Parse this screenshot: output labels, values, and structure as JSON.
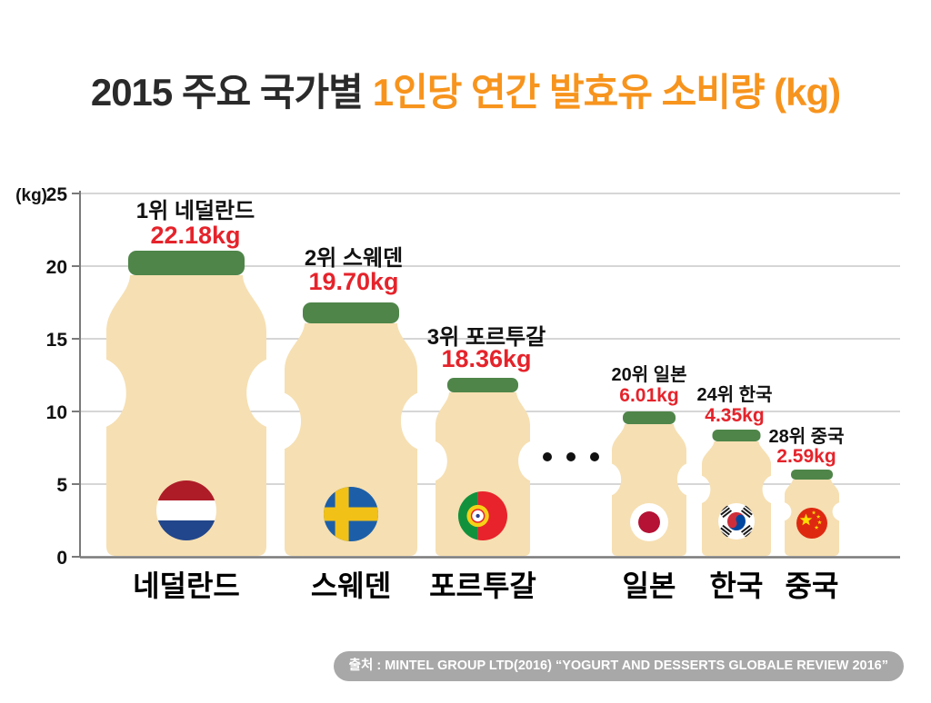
{
  "title": {
    "prefix": "2015 주요 국가별",
    "highlight": "1인당 연간 발효유 소비량 (kg)"
  },
  "source": {
    "label": "출처 : MINTEL GROUP LTD(2016) “YOGURT AND DESSERTS GLOBALE REVIEW 2016”"
  },
  "colors": {
    "title_dark": "#2a2a2a",
    "title_orange": "#f7941d",
    "value_red": "#e5232b",
    "text_dark": "#111111",
    "bottle_body": "#f6dfb2",
    "bottle_cap": "#4f8549",
    "gridline": "#c9c9c9",
    "axis": "#7a7a7a",
    "badge_bg": "#a8a8a8"
  },
  "chart_data": {
    "type": "bar",
    "title": "2015 주요 국가별 1인당 연간 발효유 소비량 (kg)",
    "ylabel": "(kg)",
    "unit": "kg",
    "ylim": [
      0,
      25
    ],
    "yticks": [
      0,
      5,
      10,
      15,
      20,
      25
    ],
    "grid": true,
    "legend": "none",
    "ellipsis_between": [
      "포르투갈",
      "일본"
    ],
    "categories": [
      "네덜란드",
      "스웨덴",
      "포르투갈",
      "일본",
      "한국",
      "중국"
    ],
    "values": [
      22.18,
      19.7,
      18.36,
      6.01,
      4.35,
      2.59
    ],
    "countries": [
      {
        "rank": 1,
        "rank_label": "1위 네덜란드",
        "name": "네덜란드",
        "value": 22.18,
        "value_label": "22.18kg",
        "flag": "netherlands",
        "flag_colors": [
          "#ae1c28",
          "#ffffff",
          "#21468b"
        ]
      },
      {
        "rank": 2,
        "rank_label": "2위 스웨덴",
        "name": "스웨덴",
        "value": 19.7,
        "value_label": "19.70kg",
        "flag": "sweden",
        "flag_colors": [
          "#1c5fa8",
          "#f2c117"
        ]
      },
      {
        "rank": 3,
        "rank_label": "3위 포르투갈",
        "name": "포르투갈",
        "value": 18.36,
        "value_label": "18.36kg",
        "flag": "portugal",
        "flag_colors": [
          "#12913d",
          "#e8232b",
          "#f7d117",
          "#ffffff"
        ]
      },
      {
        "rank": 20,
        "rank_label": "20위 일본",
        "name": "일본",
        "value": 6.01,
        "value_label": "6.01kg",
        "flag": "japan",
        "flag_colors": [
          "#ffffff",
          "#b51235"
        ]
      },
      {
        "rank": 24,
        "rank_label": "24위 한국",
        "name": "한국",
        "value": 4.35,
        "value_label": "4.35kg",
        "flag": "south-korea",
        "flag_colors": [
          "#ffffff",
          "#cd2e3a",
          "#0047a0",
          "#1a1a1a"
        ]
      },
      {
        "rank": 28,
        "rank_label": "28위 중국",
        "name": "중국",
        "value": 2.59,
        "value_label": "2.59kg",
        "flag": "china",
        "flag_colors": [
          "#de2910",
          "#ffde00"
        ]
      }
    ]
  }
}
